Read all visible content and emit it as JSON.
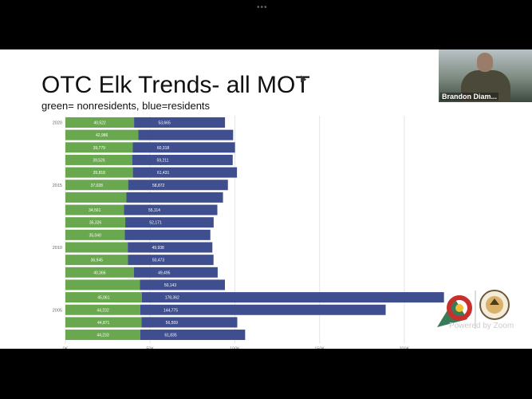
{
  "slide": {
    "title": "OTC Elk Trends- all MOT",
    "subtitle": "green= nonresidents, blue=residents"
  },
  "video": {
    "participant_name": "Brandon Diam..."
  },
  "overlay": {
    "powered_by": "Powered by Zoom"
  },
  "colors": {
    "green": "#6aa84f",
    "blue": "#3f4e8f"
  },
  "chart_data": {
    "type": "bar",
    "orientation": "horizontal",
    "stacked": true,
    "year_labels": [
      "2020",
      "",
      "",
      "",
      "",
      "2015",
      "",
      "",
      "",
      "",
      "2010",
      "",
      "",
      "",
      "",
      "2005",
      "",
      ""
    ],
    "series": [
      {
        "name": "nonresidents",
        "values": [
          40522,
          42986,
          39779,
          39526,
          39818,
          37028,
          36000,
          34561,
          35326,
          35040,
          36800,
          36945,
          40366,
          44000,
          45061,
          44232,
          44871,
          44233
        ],
        "labels": [
          "40,522",
          "42,986",
          "39,779",
          "39,526",
          "39,818",
          "37,028",
          "",
          "34,561",
          "35,326",
          "35,040",
          "",
          "36,945",
          "40,366",
          "",
          "45,061",
          "44,232",
          "44,871",
          "44,233"
        ]
      },
      {
        "name": "residents",
        "values": [
          53665,
          56000,
          60318,
          59211,
          61431,
          58872,
          57000,
          55114,
          52171,
          50500,
          49938,
          50473,
          49495,
          50143,
          178362,
          144775,
          56559,
          61835
        ],
        "labels": [
          "53,665",
          "",
          "60,318",
          "59,211",
          "61,431",
          "58,872",
          "",
          "55,114",
          "52,171",
          "",
          "49,938",
          "50,473",
          "49,495",
          "50,143",
          "178,362",
          "144,775",
          "56,559",
          "61,835"
        ]
      }
    ],
    "x_ticks": [
      "0K",
      "50K",
      "100K",
      "150K",
      "200K"
    ],
    "x_tick_values": [
      0,
      50000,
      100000,
      150000,
      200000
    ],
    "xlim": [
      0,
      225000
    ],
    "grid": true
  }
}
